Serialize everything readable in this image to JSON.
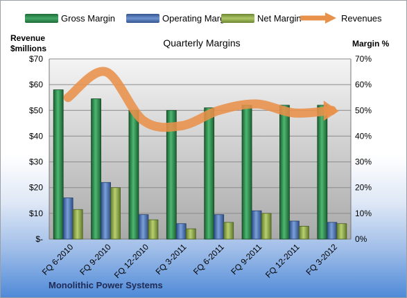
{
  "legend": [
    {
      "label": "Gross Margin",
      "color": "#2e8a4c"
    },
    {
      "label": "Operating Margin",
      "color": "#4d72b3"
    },
    {
      "label": "Net Margin",
      "color": "#8eaa48"
    },
    {
      "label": "Revenues",
      "color": "#e8914a"
    }
  ],
  "axes": {
    "left_title_line1": "Revenue",
    "left_title_line2": "$millions",
    "right_title": "Margin %"
  },
  "company": "Monolithic Power Systems",
  "chart_data": {
    "type": "bar",
    "title": "Quarterly Margins",
    "categories": [
      "FQ 6-2010",
      "FQ 9-2010",
      "FQ 12-2010",
      "FQ 3-2011",
      "FQ 6-2011",
      "FQ 9-2011",
      "FQ 12-2011",
      "FQ 3-2012"
    ],
    "series": [
      {
        "name": "Gross Margin",
        "axis": "right",
        "type": "bar",
        "color": "#2e8a4c",
        "values": [
          58,
          54.5,
          50,
          50,
          51,
          52,
          52,
          52
        ]
      },
      {
        "name": "Operating Margin",
        "axis": "right",
        "type": "bar",
        "color": "#4d72b3",
        "values": [
          16,
          22,
          9.5,
          6,
          9.5,
          11,
          7,
          6.5
        ]
      },
      {
        "name": "Net Margin",
        "axis": "right",
        "type": "bar",
        "color": "#8eaa48",
        "values": [
          11.5,
          20,
          7.5,
          4,
          6.5,
          10,
          5,
          6
        ]
      },
      {
        "name": "Revenues",
        "axis": "left",
        "type": "line",
        "color": "#e8914a",
        "values": [
          55,
          65,
          46,
          44,
          50,
          52.5,
          49,
          50
        ]
      }
    ],
    "left_axis": {
      "ylim": [
        0,
        70
      ],
      "ticks": [
        "$-",
        "$10",
        "$20",
        "$30",
        "$40",
        "$50",
        "$60",
        "$70"
      ]
    },
    "right_axis": {
      "ylim": [
        0,
        70
      ],
      "ticks": [
        "0%",
        "10%",
        "20%",
        "30%",
        "40%",
        "50%",
        "60%",
        "70%"
      ]
    },
    "grid": true,
    "legend_position": "top"
  }
}
